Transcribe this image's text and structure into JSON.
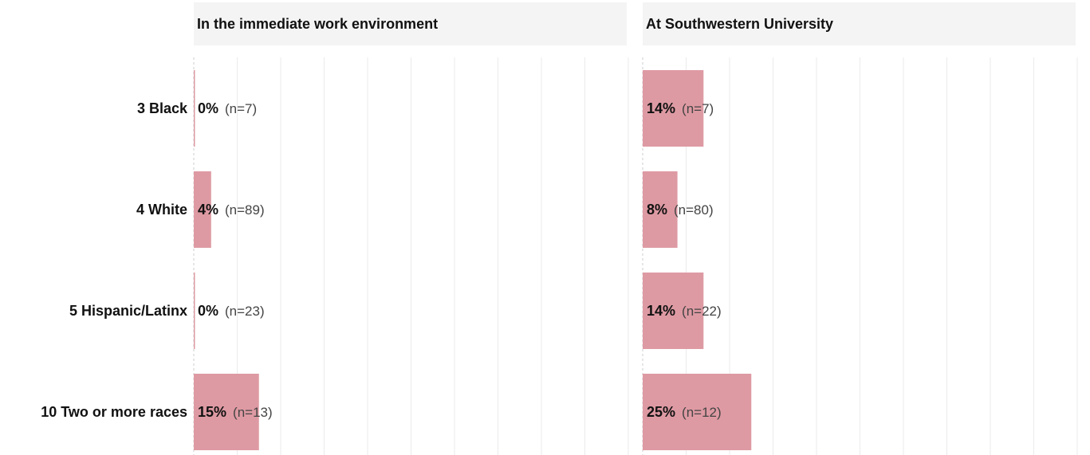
{
  "chart_data": [
    {
      "type": "bar",
      "orientation": "horizontal",
      "title": "In the immediate work environment",
      "categories": [
        "3 Black",
        "4 White",
        "5 Hispanic/Latinx",
        "10 Two or more races"
      ],
      "values": [
        0,
        4,
        0,
        15
      ],
      "value_labels": [
        "0%",
        "4%",
        "0%",
        "15%"
      ],
      "n_labels": [
        "(n=7)",
        "(n=89)",
        "(n=23)",
        "(n=13)"
      ],
      "xlim": [
        0,
        100
      ],
      "grid": true,
      "color": "#de9aa3"
    },
    {
      "type": "bar",
      "orientation": "horizontal",
      "title": "At Southwestern University",
      "categories": [
        "3 Black",
        "4 White",
        "5 Hispanic/Latinx",
        "10 Two or more races"
      ],
      "values": [
        14,
        8,
        14,
        25
      ],
      "value_labels": [
        "14%",
        "8%",
        "14%",
        "25%"
      ],
      "n_labels": [
        "(n=7)",
        "(n=80)",
        "(n=22)",
        "(n=12)"
      ],
      "xlim": [
        0,
        100
      ],
      "grid": true,
      "color": "#de9aa3"
    }
  ]
}
